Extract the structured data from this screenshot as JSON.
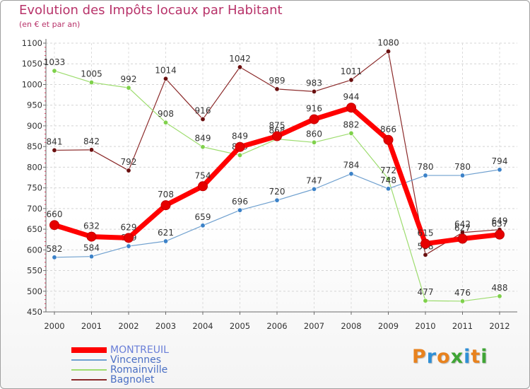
{
  "title": "Evolution des Impôts locaux par Habitant",
  "subtitle": "(en € et par an)",
  "logo": {
    "letters": [
      "P",
      "r",
      "o",
      "x",
      "i",
      "t",
      "i"
    ],
    "colors": [
      "#e8821e",
      "#2f8fd6",
      "#e8821e",
      "#3fa535",
      "#2f8fd6",
      "#e8821e",
      "#3fa535"
    ]
  },
  "chart_data": {
    "type": "line",
    "title": "Evolution des Impôts locaux par Habitant",
    "subtitle": "(en € et par an)",
    "xlabel": "",
    "ylabel": "",
    "x": [
      "2000",
      "2001",
      "2002",
      "2003",
      "2004",
      "2005",
      "2006",
      "2007",
      "2008",
      "2009",
      "2010",
      "2011",
      "2012"
    ],
    "ylim": [
      450,
      1100
    ],
    "yticks": [
      450,
      500,
      550,
      600,
      650,
      700,
      750,
      800,
      850,
      900,
      950,
      1000,
      1050,
      1100
    ],
    "grid": true,
    "legend_position": "bottom-left",
    "series": [
      {
        "name": "Bagnolet",
        "color": "#8b2a2a",
        "marker": "#6a0f0f",
        "width": 1.2,
        "values": [
          841,
          842,
          792,
          1014,
          916,
          1042,
          989,
          983,
          1011,
          1080,
          588,
          642,
          649
        ],
        "labels": [
          "841",
          "842",
          "792",
          "1014",
          "916",
          "1042",
          "989",
          "983",
          "1011",
          "1080",
          "588",
          "642",
          "649"
        ]
      },
      {
        "name": "Romainville",
        "color": "#9ddc6e",
        "marker": "#7fd14b",
        "width": 1.2,
        "values": [
          1033,
          1005,
          992,
          908,
          849,
          829,
          868,
          860,
          882,
          772,
          477,
          476,
          488
        ],
        "labels": [
          "1033",
          "1005",
          "992",
          "908",
          "849",
          "829",
          "868",
          "860",
          "882",
          "772",
          "477",
          "476",
          "488"
        ]
      },
      {
        "name": "Vincennes",
        "color": "#6fa0cf",
        "marker": "#3c82c8",
        "width": 1.2,
        "values": [
          582,
          584,
          609,
          621,
          659,
          696,
          720,
          747,
          784,
          748,
          780,
          780,
          794
        ],
        "labels": [
          "582",
          "584",
          "609",
          "621",
          "659",
          "696",
          "720",
          "747",
          "784",
          "748",
          "780",
          "780",
          "794"
        ]
      },
      {
        "name": "MONTREUIL",
        "color": "#ff0000",
        "marker": "#e60000",
        "width": 7,
        "values": [
          660,
          632,
          629,
          708,
          754,
          849,
          875,
          916,
          944,
          866,
          615,
          627,
          637
        ],
        "labels": [
          "660",
          "632",
          "629",
          "708",
          "754",
          "849",
          "875",
          "916",
          "944",
          "866",
          "615",
          "627",
          "637"
        ]
      }
    ]
  },
  "legend": [
    {
      "name": "MONTREUIL",
      "color": "#ff0000",
      "thickness": "thick"
    },
    {
      "name": "Vincennes",
      "color": "#6fa0cf",
      "thickness": "thin"
    },
    {
      "name": "Romainville",
      "color": "#9ddc6e",
      "thickness": "thin"
    },
    {
      "name": "Bagnolet",
      "color": "#8b2a2a",
      "thickness": "thin"
    }
  ]
}
